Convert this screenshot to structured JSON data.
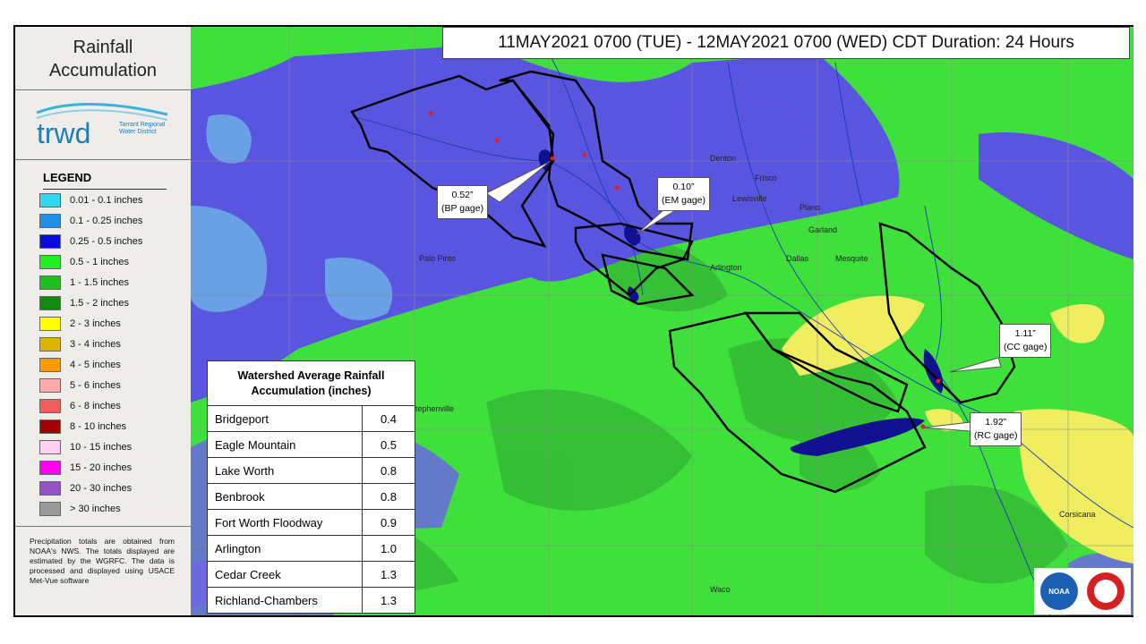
{
  "sidebar": {
    "title": "Rainfall Accumulation",
    "logo": {
      "wordmark": "trwd",
      "org": "Tarrant Regional Water District"
    },
    "legend": {
      "title": "LEGEND",
      "items": [
        {
          "label": "0.01 - 0.1 inches",
          "color": "#33d6f0"
        },
        {
          "label": "0.1 - 0.25 inches",
          "color": "#1f8fe8"
        },
        {
          "label": "0.25 - 0.5 inches",
          "color": "#0a0adc"
        },
        {
          "label": "0.5 - 1 inches",
          "color": "#22ee22"
        },
        {
          "label": "1 - 1.5 inches",
          "color": "#1fbf1f"
        },
        {
          "label": "1.5 - 2 inches",
          "color": "#128a12"
        },
        {
          "label": "2 - 3 inches",
          "color": "#ffff00"
        },
        {
          "label": "3 - 4 inches",
          "color": "#dcb400"
        },
        {
          "label": "4 - 5 inches",
          "color": "#ff9a00"
        },
        {
          "label": "5 - 6 inches",
          "color": "#ffaaaa"
        },
        {
          "label": "6 - 8 inches",
          "color": "#ee6060"
        },
        {
          "label": "8 - 10 inches",
          "color": "#a00000"
        },
        {
          "label": "10 - 15 inches",
          "color": "#ffd0f0"
        },
        {
          "label": "15 - 20 inches",
          "color": "#ff00ee"
        },
        {
          "label": "20 - 30 inches",
          "color": "#9450c8"
        },
        {
          "label": "> 30 inches",
          "color": "#9a9a9a"
        }
      ]
    },
    "footnote": "Precipitation totals are obtained from NOAA's NWS. The totals displayed are estimated by the WGRFC. The data is processed and displayed using USACE Met-Vue software"
  },
  "header": {
    "title": "11MAY2021 0700 (TUE) - 12MAY2021 0700 (WED) CDT Duration: 24 Hours"
  },
  "table": {
    "title": "Watershed Average Rainfall Accumulation (inches)",
    "rows": [
      [
        "Bridgeport",
        "0.4"
      ],
      [
        "Eagle Mountain",
        "0.5"
      ],
      [
        "Lake Worth",
        "0.8"
      ],
      [
        "Benbrook",
        "0.8"
      ],
      [
        "Fort Worth Floodway",
        "0.9"
      ],
      [
        "Arlington",
        "1.0"
      ],
      [
        "Cedar Creek",
        "1.3"
      ],
      [
        "Richland-Chambers",
        "1.3"
      ]
    ]
  },
  "callouts": [
    {
      "value": "0.52”",
      "gage": "(BP gage)"
    },
    {
      "value": "0.10”",
      "gage": "(EM gage)"
    },
    {
      "value": "1.11”",
      "gage": "(CC gage)"
    },
    {
      "value": "1.92”",
      "gage": "(RC gage)"
    }
  ],
  "places": [
    "Denton",
    "Frisco",
    "Plano",
    "Garland",
    "Dallas",
    "Arlington",
    "Lewisville",
    "Mesquite",
    "Waco",
    "Palo Pinto",
    "Stephenville",
    "Corsicana"
  ],
  "agency": "NOAA"
}
